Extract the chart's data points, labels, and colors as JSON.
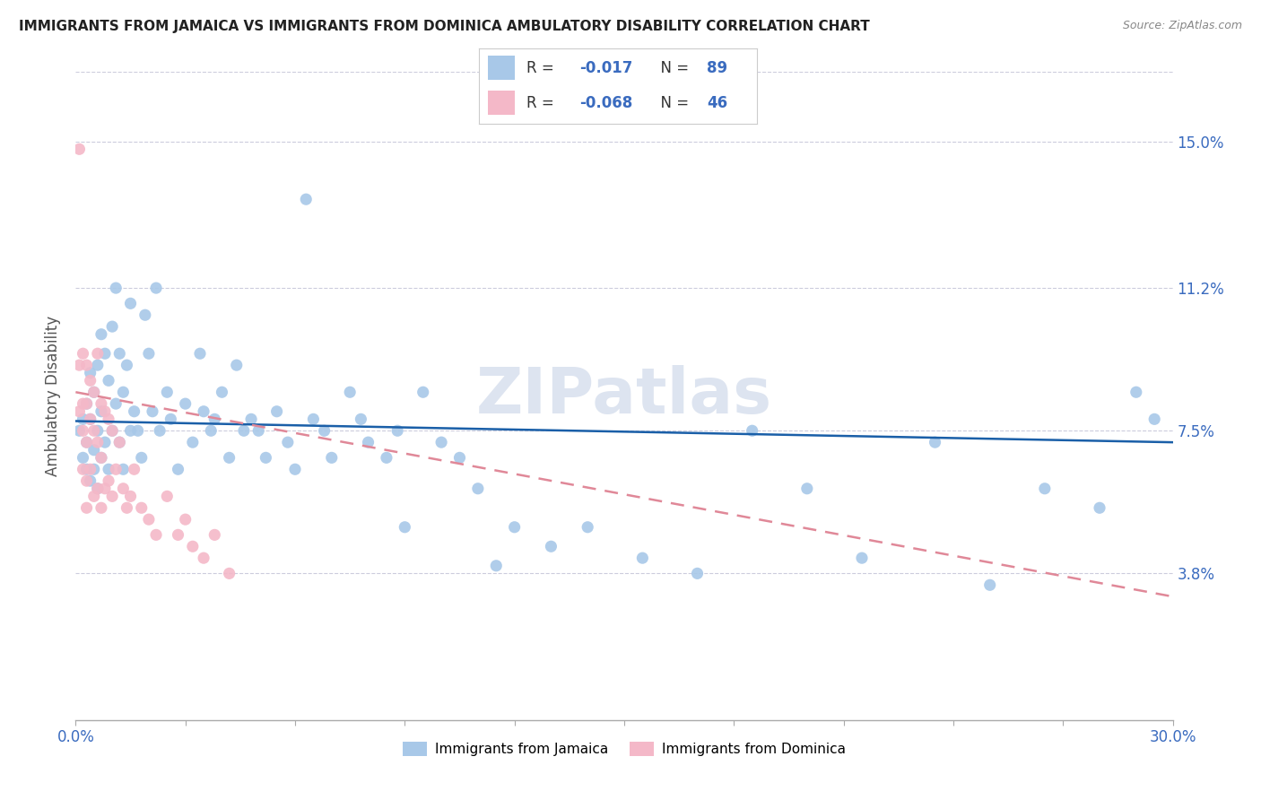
{
  "title": "IMMIGRANTS FROM JAMAICA VS IMMIGRANTS FROM DOMINICA AMBULATORY DISABILITY CORRELATION CHART",
  "source": "Source: ZipAtlas.com",
  "ylabel": "Ambulatory Disability",
  "ytick_labels": [
    "3.8%",
    "7.5%",
    "11.2%",
    "15.0%"
  ],
  "ytick_values": [
    0.038,
    0.075,
    0.112,
    0.15
  ],
  "xlim": [
    0.0,
    0.3
  ],
  "ylim": [
    0.0,
    0.168
  ],
  "jamaica_color": "#a8c8e8",
  "dominica_color": "#f4b8c8",
  "jamaica_line_color": "#1a5fa8",
  "dominica_line_color": "#e08898",
  "watermark": "ZIPatlas",
  "legend_text_color": "#3a6bbf",
  "legend_r1_vals": "R =  -0.017   N = 89",
  "legend_r2_vals": "R =  -0.068   N = 46",
  "jamaica_scatter_x": [
    0.001,
    0.002,
    0.002,
    0.003,
    0.003,
    0.003,
    0.004,
    0.004,
    0.004,
    0.005,
    0.005,
    0.005,
    0.006,
    0.006,
    0.006,
    0.007,
    0.007,
    0.007,
    0.008,
    0.008,
    0.009,
    0.009,
    0.01,
    0.01,
    0.011,
    0.011,
    0.012,
    0.012,
    0.013,
    0.013,
    0.014,
    0.015,
    0.015,
    0.016,
    0.017,
    0.018,
    0.019,
    0.02,
    0.021,
    0.022,
    0.023,
    0.025,
    0.026,
    0.028,
    0.03,
    0.032,
    0.034,
    0.035,
    0.037,
    0.038,
    0.04,
    0.042,
    0.044,
    0.046,
    0.048,
    0.05,
    0.052,
    0.055,
    0.058,
    0.06,
    0.063,
    0.065,
    0.068,
    0.07,
    0.075,
    0.078,
    0.08,
    0.085,
    0.088,
    0.09,
    0.095,
    0.1,
    0.105,
    0.11,
    0.115,
    0.12,
    0.13,
    0.14,
    0.155,
    0.17,
    0.185,
    0.2,
    0.215,
    0.235,
    0.25,
    0.265,
    0.28,
    0.29,
    0.295
  ],
  "jamaica_scatter_y": [
    0.075,
    0.078,
    0.068,
    0.072,
    0.082,
    0.065,
    0.09,
    0.078,
    0.062,
    0.085,
    0.07,
    0.065,
    0.092,
    0.075,
    0.06,
    0.1,
    0.08,
    0.068,
    0.095,
    0.072,
    0.088,
    0.065,
    0.102,
    0.075,
    0.112,
    0.082,
    0.095,
    0.072,
    0.085,
    0.065,
    0.092,
    0.108,
    0.075,
    0.08,
    0.075,
    0.068,
    0.105,
    0.095,
    0.08,
    0.112,
    0.075,
    0.085,
    0.078,
    0.065,
    0.082,
    0.072,
    0.095,
    0.08,
    0.075,
    0.078,
    0.085,
    0.068,
    0.092,
    0.075,
    0.078,
    0.075,
    0.068,
    0.08,
    0.072,
    0.065,
    0.135,
    0.078,
    0.075,
    0.068,
    0.085,
    0.078,
    0.072,
    0.068,
    0.075,
    0.05,
    0.085,
    0.072,
    0.068,
    0.06,
    0.04,
    0.05,
    0.045,
    0.05,
    0.042,
    0.038,
    0.075,
    0.06,
    0.042,
    0.072,
    0.035,
    0.06,
    0.055,
    0.085,
    0.078
  ],
  "dominica_scatter_x": [
    0.001,
    0.001,
    0.001,
    0.002,
    0.002,
    0.002,
    0.002,
    0.003,
    0.003,
    0.003,
    0.003,
    0.003,
    0.004,
    0.004,
    0.004,
    0.005,
    0.005,
    0.005,
    0.006,
    0.006,
    0.006,
    0.007,
    0.007,
    0.007,
    0.008,
    0.008,
    0.009,
    0.009,
    0.01,
    0.01,
    0.011,
    0.012,
    0.013,
    0.014,
    0.015,
    0.016,
    0.018,
    0.02,
    0.022,
    0.025,
    0.028,
    0.03,
    0.032,
    0.035,
    0.038,
    0.042
  ],
  "dominica_scatter_y": [
    0.148,
    0.092,
    0.08,
    0.095,
    0.082,
    0.075,
    0.065,
    0.092,
    0.082,
    0.072,
    0.062,
    0.055,
    0.088,
    0.078,
    0.065,
    0.085,
    0.075,
    0.058,
    0.095,
    0.072,
    0.06,
    0.082,
    0.068,
    0.055,
    0.08,
    0.06,
    0.078,
    0.062,
    0.075,
    0.058,
    0.065,
    0.072,
    0.06,
    0.055,
    0.058,
    0.065,
    0.055,
    0.052,
    0.048,
    0.058,
    0.048,
    0.052,
    0.045,
    0.042,
    0.048,
    0.038
  ],
  "jamaica_trend_x": [
    0.0,
    0.3
  ],
  "jamaica_trend_y": [
    0.0775,
    0.072
  ],
  "dominica_trend_x": [
    0.0,
    0.3
  ],
  "dominica_trend_y": [
    0.085,
    0.032
  ]
}
